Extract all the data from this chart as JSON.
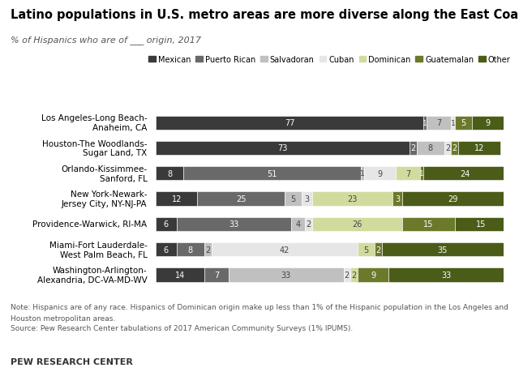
{
  "title": "Latino populations in U.S. metro areas are more diverse along the East Coast",
  "subtitle": "% of Hispanics who are of ___ origin, 2017",
  "categories": [
    "Los Angeles-Long Beach-\nAnaheim, CA",
    "Houston-The Woodlands-\nSugar Land, TX",
    "Orlando-Kissimmee-\nSanford, FL",
    "New York-Newark-\nJersey City, NY-NJ-PA",
    "Providence-Warwick, RI-MA",
    "Miami-Fort Lauderdale-\nWest Palm Beach, FL",
    "Washington-Arlington-\nAlexandria, DC-VA-MD-WV"
  ],
  "series": {
    "Mexican": [
      77,
      73,
      8,
      12,
      6,
      6,
      14
    ],
    "Puerto Rican": [
      1,
      2,
      51,
      25,
      33,
      8,
      7
    ],
    "Salvadoran": [
      7,
      8,
      1,
      5,
      4,
      2,
      33
    ],
    "Cuban": [
      1,
      2,
      9,
      3,
      2,
      42,
      2
    ],
    "Dominican": [
      0,
      0,
      7,
      23,
      26,
      5,
      2
    ],
    "Guatemalan": [
      5,
      2,
      1,
      3,
      15,
      2,
      9
    ],
    "Other": [
      9,
      12,
      24,
      29,
      15,
      35,
      33
    ]
  },
  "colors": {
    "Mexican": "#3a3a3a",
    "Puerto Rican": "#696969",
    "Salvadoran": "#c0c0c0",
    "Cuban": "#e6e6e6",
    "Dominican": "#d2db9e",
    "Guatemalan": "#6b7a2a",
    "Other": "#4a5c18"
  },
  "label_min": 2,
  "note1": "Note: Hispanics are of any race. Hispanics of Dominican origin make up less than 1% of the Hispanic population in the Los Angeles and",
  "note2": "Houston metropolitan areas.",
  "note3": "Source: Pew Research Center tabulations of 2017 American Community Surveys (1% IPUMS).",
  "footer": "PEW RESEARCH CENTER",
  "bar_height": 0.55,
  "figsize": [
    6.4,
    4.6
  ],
  "dpi": 100
}
